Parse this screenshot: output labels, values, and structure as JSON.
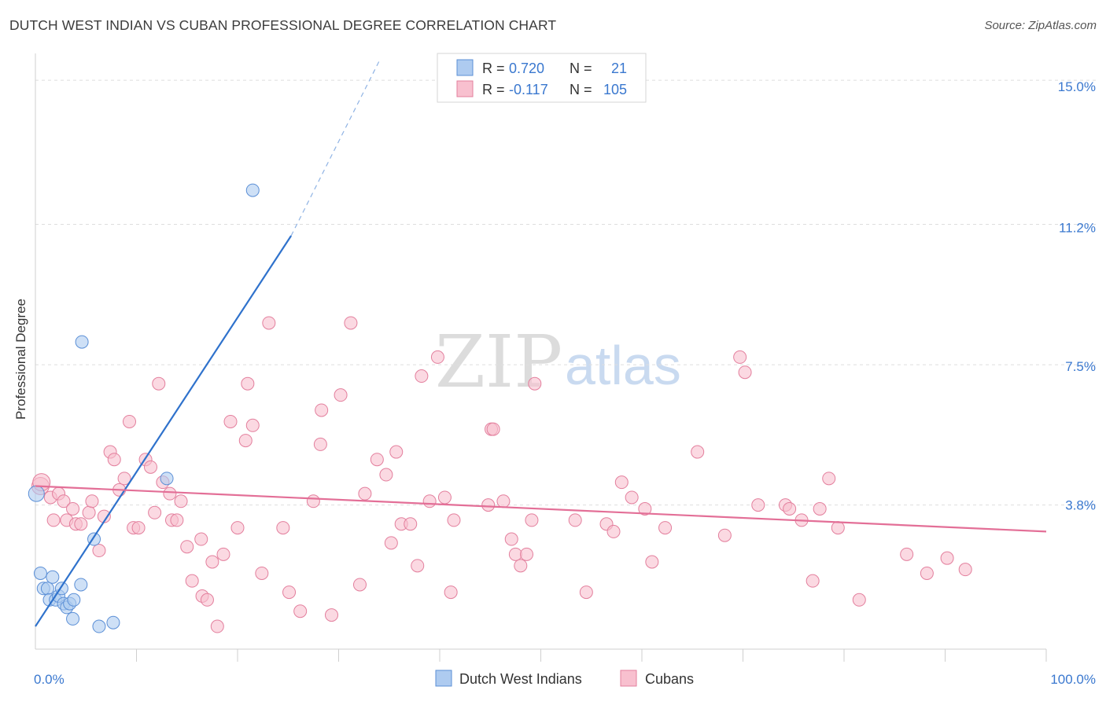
{
  "header": {
    "title": "DUTCH WEST INDIAN VS CUBAN PROFESSIONAL DEGREE CORRELATION CHART",
    "source": "Source: ZipAtlas.com"
  },
  "watermark": {
    "part1": "ZIP",
    "part2": "atlas"
  },
  "legend_box": {
    "rows": [
      {
        "r_label": "R = ",
        "r_value": "0.720",
        "n_label": "N = ",
        "n_value": "21",
        "color": "#aecbf0",
        "border": "#5b8fd6"
      },
      {
        "r_label": "R = ",
        "r_value": "-0.117",
        "n_label": "N = ",
        "n_value": "105",
        "color": "#f8c0cf",
        "border": "#e37f9d"
      }
    ]
  },
  "bottom_legend": [
    {
      "label": "Dutch West Indians",
      "color": "#aecbf0",
      "border": "#5b8fd6"
    },
    {
      "label": "Cubans",
      "color": "#f8c0cf",
      "border": "#e37f9d"
    }
  ],
  "chart_data": {
    "type": "scatter",
    "title": "DUTCH WEST INDIAN VS CUBAN PROFESSIONAL DEGREE CORRELATION CHART",
    "xlabel": "",
    "ylabel": "Professional Degree",
    "xlim": [
      0,
      100
    ],
    "ylim": [
      0,
      15.5
    ],
    "x_tick_labels": [
      {
        "value": 0,
        "label": "0.0%"
      },
      {
        "value": 100,
        "label": "100.0%"
      }
    ],
    "y_tick_labels": [
      {
        "value": 15.0,
        "label": "15.0%"
      },
      {
        "value": 11.2,
        "label": "11.2%"
      },
      {
        "value": 7.5,
        "label": "7.5%"
      },
      {
        "value": 3.8,
        "label": "3.8%"
      }
    ],
    "grid": true,
    "legend_position": "top-center",
    "colors": {
      "blue_fill": "#aecbf0",
      "blue_stroke": "#5b8fd6",
      "blue_line": "#2f72cc",
      "pink_fill": "#f8c0cf",
      "pink_stroke": "#e37f9d",
      "pink_line": "#e36f97",
      "tick_label": "#3a78cf"
    },
    "series": [
      {
        "name": "Dutch West Indians",
        "points": [
          [
            0.1,
            4.1
          ],
          [
            0.5,
            2.0
          ],
          [
            0.8,
            1.6
          ],
          [
            1.2,
            1.6
          ],
          [
            1.4,
            1.3
          ],
          [
            1.7,
            1.9
          ],
          [
            2.0,
            1.3
          ],
          [
            2.3,
            1.4
          ],
          [
            2.6,
            1.6
          ],
          [
            2.8,
            1.2
          ],
          [
            3.1,
            1.1
          ],
          [
            3.4,
            1.2
          ],
          [
            3.7,
            0.8
          ],
          [
            3.8,
            1.3
          ],
          [
            4.5,
            1.7
          ],
          [
            4.6,
            8.1
          ],
          [
            5.8,
            2.9
          ],
          [
            6.3,
            0.6
          ],
          [
            7.7,
            0.7
          ],
          [
            13.0,
            4.5
          ],
          [
            21.5,
            12.1
          ]
        ],
        "trend": {
          "x_start": 0,
          "y_start": 0.6,
          "x_solid_end": 25.3,
          "y_solid_end": 10.9,
          "x_dash_end": 34.0,
          "y_dash_end": 15.5
        }
      },
      {
        "name": "Cubans",
        "points": [
          [
            0.5,
            4.3
          ],
          [
            0.6,
            4.4
          ],
          [
            1.5,
            4.0
          ],
          [
            1.8,
            3.4
          ],
          [
            2.3,
            4.1
          ],
          [
            2.8,
            3.9
          ],
          [
            3.1,
            3.4
          ],
          [
            3.7,
            3.7
          ],
          [
            4.0,
            3.3
          ],
          [
            4.5,
            3.3
          ],
          [
            5.3,
            3.6
          ],
          [
            5.6,
            3.9
          ],
          [
            6.3,
            2.6
          ],
          [
            6.8,
            3.5
          ],
          [
            7.4,
            5.2
          ],
          [
            7.8,
            5.0
          ],
          [
            8.3,
            4.2
          ],
          [
            8.8,
            4.5
          ],
          [
            9.3,
            6.0
          ],
          [
            9.7,
            3.2
          ],
          [
            10.2,
            3.2
          ],
          [
            10.9,
            5.0
          ],
          [
            11.4,
            4.8
          ],
          [
            11.8,
            3.6
          ],
          [
            12.2,
            7.0
          ],
          [
            12.6,
            4.4
          ],
          [
            13.3,
            4.1
          ],
          [
            13.5,
            3.4
          ],
          [
            14.0,
            3.4
          ],
          [
            14.4,
            3.9
          ],
          [
            15.0,
            2.7
          ],
          [
            15.5,
            1.8
          ],
          [
            16.4,
            2.9
          ],
          [
            16.5,
            1.4
          ],
          [
            17.0,
            1.3
          ],
          [
            17.5,
            2.3
          ],
          [
            18.0,
            0.6
          ],
          [
            18.6,
            2.5
          ],
          [
            19.3,
            6.0
          ],
          [
            20.0,
            3.2
          ],
          [
            20.8,
            5.5
          ],
          [
            21.0,
            7.0
          ],
          [
            21.5,
            5.9
          ],
          [
            22.4,
            2.0
          ],
          [
            23.1,
            8.6
          ],
          [
            24.5,
            3.2
          ],
          [
            25.1,
            1.5
          ],
          [
            26.2,
            1.0
          ],
          [
            27.5,
            3.9
          ],
          [
            28.2,
            5.4
          ],
          [
            28.3,
            6.3
          ],
          [
            29.3,
            0.9
          ],
          [
            30.2,
            6.7
          ],
          [
            31.2,
            8.6
          ],
          [
            32.1,
            1.7
          ],
          [
            32.6,
            4.1
          ],
          [
            33.8,
            5.0
          ],
          [
            34.7,
            4.6
          ],
          [
            35.2,
            2.8
          ],
          [
            35.7,
            5.2
          ],
          [
            36.2,
            3.3
          ],
          [
            37.1,
            3.3
          ],
          [
            37.8,
            2.2
          ],
          [
            38.2,
            7.2
          ],
          [
            39.0,
            3.9
          ],
          [
            39.8,
            7.7
          ],
          [
            40.5,
            4.0
          ],
          [
            41.1,
            1.5
          ],
          [
            41.4,
            3.4
          ],
          [
            44.8,
            3.8
          ],
          [
            45.1,
            5.8
          ],
          [
            45.3,
            5.8
          ],
          [
            46.3,
            3.9
          ],
          [
            47.1,
            2.9
          ],
          [
            47.5,
            2.5
          ],
          [
            48.0,
            2.2
          ],
          [
            48.6,
            2.5
          ],
          [
            49.1,
            3.4
          ],
          [
            49.4,
            7.0
          ],
          [
            53.4,
            3.4
          ],
          [
            54.5,
            1.5
          ],
          [
            56.5,
            3.3
          ],
          [
            57.2,
            3.1
          ],
          [
            58.0,
            4.4
          ],
          [
            59.0,
            4.0
          ],
          [
            60.3,
            3.7
          ],
          [
            61.0,
            2.3
          ],
          [
            62.3,
            3.2
          ],
          [
            65.5,
            5.2
          ],
          [
            68.2,
            3.0
          ],
          [
            69.7,
            7.7
          ],
          [
            70.2,
            7.3
          ],
          [
            71.5,
            3.8
          ],
          [
            74.2,
            3.8
          ],
          [
            74.6,
            3.7
          ],
          [
            75.8,
            3.4
          ],
          [
            76.9,
            1.8
          ],
          [
            77.6,
            3.7
          ],
          [
            78.5,
            4.5
          ],
          [
            79.4,
            3.2
          ],
          [
            81.5,
            1.3
          ],
          [
            86.2,
            2.5
          ],
          [
            88.2,
            2.0
          ],
          [
            90.2,
            2.4
          ],
          [
            92.0,
            2.1
          ]
        ],
        "trend": {
          "x_start": 0,
          "y_start": 4.3,
          "x_end": 100,
          "y_end": 3.1
        }
      }
    ]
  }
}
